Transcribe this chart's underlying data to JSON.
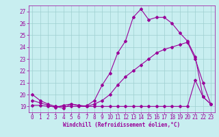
{
  "xlabel": "Windchill (Refroidissement éolien,°C)",
  "background_color": "#c8eef0",
  "grid_color": "#9ecfcf",
  "line_color": "#990099",
  "xlim": [
    -0.5,
    23.5
  ],
  "ylim": [
    18.5,
    27.5
  ],
  "xticks": [
    0,
    1,
    2,
    3,
    4,
    5,
    6,
    7,
    8,
    9,
    10,
    11,
    12,
    13,
    14,
    15,
    16,
    17,
    18,
    19,
    20,
    21,
    22,
    23
  ],
  "yticks": [
    19,
    20,
    21,
    22,
    23,
    24,
    25,
    26,
    27
  ],
  "series1_x": [
    0,
    1,
    2,
    3,
    4,
    5,
    6,
    7,
    8,
    9,
    10,
    11,
    12,
    13,
    14,
    15,
    16,
    17,
    18,
    19,
    20,
    21,
    22,
    23
  ],
  "series1_y": [
    20.0,
    19.5,
    19.2,
    19.0,
    18.85,
    19.2,
    19.05,
    19.05,
    19.5,
    20.8,
    21.8,
    23.5,
    24.5,
    26.5,
    27.2,
    26.3,
    26.5,
    26.5,
    26.0,
    25.2,
    24.5,
    23.2,
    19.8,
    19.2
  ],
  "series2_x": [
    0,
    1,
    2,
    3,
    4,
    5,
    6,
    7,
    8,
    9,
    10,
    11,
    12,
    13,
    14,
    15,
    16,
    17,
    18,
    19,
    20,
    21,
    22,
    23
  ],
  "series2_y": [
    19.1,
    19.1,
    19.0,
    19.0,
    19.0,
    19.0,
    19.0,
    19.0,
    19.0,
    19.0,
    19.0,
    19.0,
    19.0,
    19.0,
    19.0,
    19.0,
    19.0,
    19.0,
    19.0,
    19.0,
    19.0,
    21.2,
    19.8,
    19.2
  ],
  "series3_x": [
    0,
    1,
    2,
    3,
    4,
    5,
    6,
    7,
    8,
    9,
    10,
    11,
    12,
    13,
    14,
    15,
    16,
    17,
    18,
    19,
    20,
    21,
    22,
    23
  ],
  "series3_y": [
    19.5,
    19.3,
    19.1,
    18.9,
    19.1,
    19.2,
    19.1,
    19.0,
    19.2,
    19.5,
    20.0,
    20.8,
    21.5,
    22.0,
    22.5,
    23.0,
    23.5,
    23.8,
    24.0,
    24.2,
    24.4,
    23.0,
    21.0,
    19.2
  ],
  "tick_fontsize": 5.5,
  "xlabel_fontsize": 5.5
}
